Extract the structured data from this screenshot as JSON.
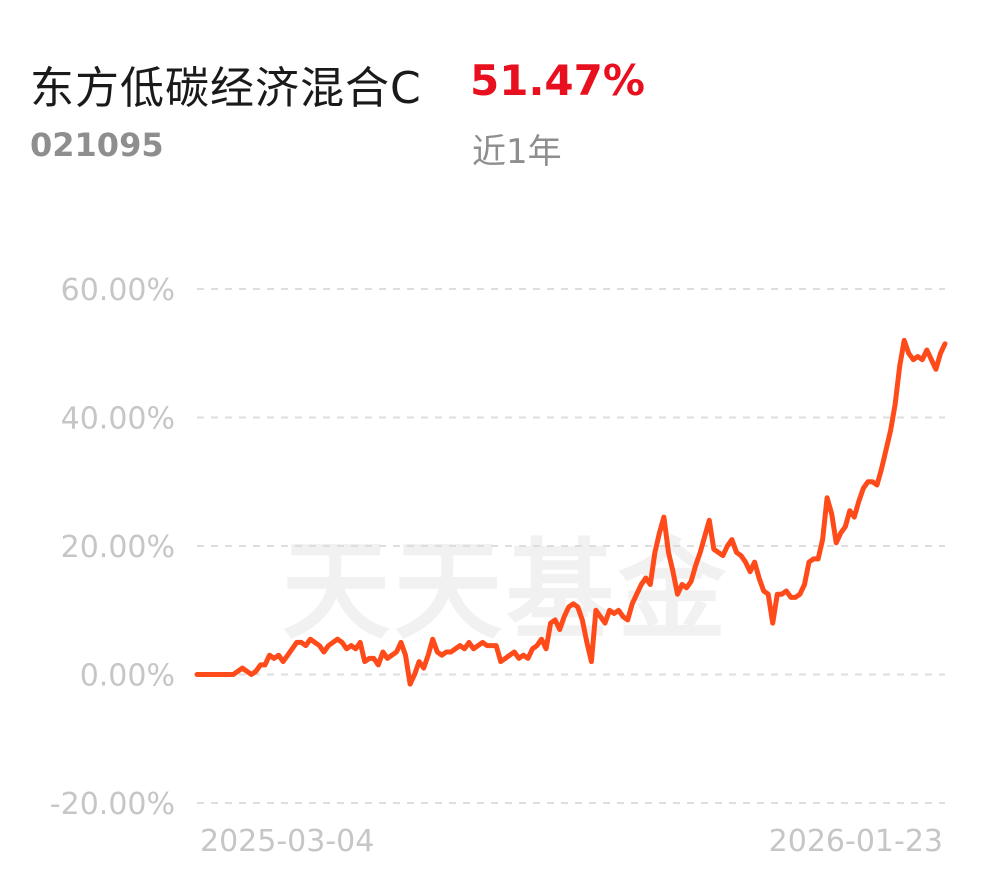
{
  "fund": {
    "name": "东方低碳经济混合C",
    "code": "021095",
    "return": "51.47%",
    "period": "近1年"
  },
  "watermark": "天天基金",
  "colors": {
    "line": "#ff4a1a",
    "return": "#e8101e",
    "muted": "#8e8e8e",
    "axis_text": "#c6c6c6"
  },
  "chart_data": {
    "type": "line",
    "title": "",
    "xlabel": "",
    "ylabel": "",
    "x_start_label": "2025-03-04",
    "x_end_label": "2026-01-23",
    "ylim": [
      -20,
      60
    ],
    "y_ticks": [
      "60.00%",
      "40.00%",
      "20.00%",
      "0.00%",
      "-20.00%"
    ],
    "y_tick_values": [
      60,
      40,
      20,
      0,
      -20
    ],
    "grid": true,
    "series": [
      {
        "values": [
          0,
          0,
          0,
          0,
          0,
          0,
          0,
          0,
          0,
          0.5,
          1,
          0.5,
          0,
          0.5,
          1.5,
          1.5,
          3,
          2.5,
          3,
          2,
          3,
          4,
          5,
          5,
          4.5,
          5.5,
          5,
          4.5,
          3.5,
          4.5,
          5,
          5.5,
          5,
          4,
          4.5,
          4,
          5,
          2,
          2.5,
          2.5,
          1.5,
          3.5,
          2.5,
          3,
          3.5,
          5,
          3,
          -1.5,
          0,
          2,
          1,
          3,
          5.5,
          3.5,
          3,
          3.5,
          3.5,
          4,
          4.5,
          4,
          5,
          4,
          4.5,
          5,
          4.5,
          4.5,
          4.5,
          2,
          2.5,
          3,
          3.5,
          2.5,
          3,
          2.5,
          4,
          4.5,
          5.5,
          4,
          8,
          8.5,
          7,
          9,
          10.5,
          11,
          10.5,
          8.5,
          5,
          2,
          10,
          9,
          8,
          10,
          9.5,
          10,
          9,
          8.5,
          11,
          12.5,
          14,
          15,
          14,
          19,
          22,
          24.5,
          19,
          16,
          12.5,
          14,
          13.5,
          14.5,
          17,
          19,
          21.5,
          24,
          19.5,
          19,
          18.5,
          20,
          21,
          19,
          18.5,
          17.5,
          16,
          17.5,
          15,
          13,
          12.5,
          8,
          12.5,
          12.5,
          13,
          12,
          12,
          12.5,
          14,
          17.5,
          18,
          18,
          21,
          27.5,
          25,
          20.5,
          22,
          23,
          25.5,
          24.5,
          27,
          29,
          30,
          30,
          29.5,
          32,
          35,
          38,
          42,
          48,
          52,
          50,
          49,
          49.5,
          49,
          50.5,
          49,
          47.5,
          50,
          51.47
        ]
      }
    ]
  }
}
